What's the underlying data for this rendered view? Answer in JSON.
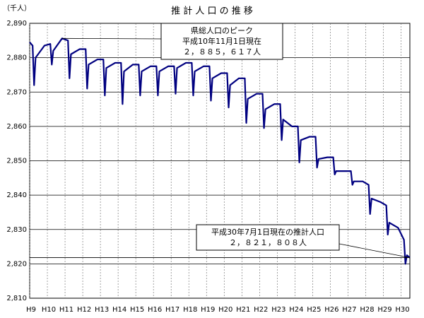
{
  "chart_data": {
    "type": "line",
    "title": "推 計 人 口 の 推 移",
    "y_label": "（千人）",
    "x": [
      0,
      2,
      3,
      4,
      10,
      14,
      15,
      16,
      22,
      26,
      27,
      28,
      34,
      38,
      39,
      40,
      46,
      50,
      51,
      52,
      58,
      62,
      63,
      64,
      70,
      74,
      75,
      76,
      82,
      86,
      87,
      88,
      94,
      98,
      99,
      100,
      106,
      110,
      111,
      112,
      118,
      122,
      123,
      124,
      130,
      134,
      135,
      136,
      142,
      146,
      147,
      148,
      154,
      158,
      159,
      160,
      166,
      170,
      171,
      172,
      178,
      182,
      183,
      184,
      190,
      194,
      195,
      196,
      202,
      206,
      207,
      208,
      214,
      218,
      219,
      220,
      226,
      230,
      231,
      232,
      238,
      242,
      243,
      244,
      250,
      254,
      255,
      256,
      258
    ],
    "series": [
      {
        "name": "推計人口",
        "color": "#000080",
        "values": [
          2884.5,
          2883.5,
          2872,
          2880,
          2883.5,
          2884,
          2878,
          2882,
          2885.617,
          2885,
          2874,
          2881,
          2882.5,
          2882.5,
          2871,
          2878,
          2879.5,
          2879.5,
          2869,
          2877,
          2878.5,
          2878.5,
          2866.5,
          2876,
          2878,
          2878,
          2869,
          2876,
          2877.5,
          2877.5,
          2869,
          2876,
          2877.5,
          2877.5,
          2869.5,
          2877,
          2878.5,
          2878.5,
          2869,
          2876,
          2877.5,
          2877.5,
          2867.5,
          2874,
          2875.5,
          2875.5,
          2865.5,
          2872,
          2874,
          2874,
          2861,
          2868,
          2869.5,
          2869.5,
          2859.5,
          2865,
          2866.5,
          2866.5,
          2856,
          2862,
          2860,
          2860,
          2849.5,
          2856,
          2857,
          2857,
          2848,
          2850.5,
          2851,
          2851,
          2846,
          2847,
          2847,
          2847,
          2843,
          2844,
          2844,
          2843,
          2834.5,
          2839,
          2838,
          2837,
          2828.5,
          2832,
          2830.5,
          2827,
          2820,
          2822.5,
          2821.808
        ]
      }
    ],
    "xlim": [
      0,
      258
    ],
    "xticks": [
      {
        "value": 0,
        "label": "H9"
      },
      {
        "value": 12,
        "label": "H10"
      },
      {
        "value": 24,
        "label": "H11"
      },
      {
        "value": 36,
        "label": "H12"
      },
      {
        "value": 48,
        "label": "H13"
      },
      {
        "value": 60,
        "label": "H14"
      },
      {
        "value": 72,
        "label": "H15"
      },
      {
        "value": 84,
        "label": "H16"
      },
      {
        "value": 96,
        "label": "H17"
      },
      {
        "value": 108,
        "label": "H18"
      },
      {
        "value": 120,
        "label": "H19"
      },
      {
        "value": 132,
        "label": "H20"
      },
      {
        "value": 144,
        "label": "H21"
      },
      {
        "value": 156,
        "label": "H22"
      },
      {
        "value": 168,
        "label": "H23"
      },
      {
        "value": 180,
        "label": "H24"
      },
      {
        "value": 192,
        "label": "H25"
      },
      {
        "value": 204,
        "label": "H26"
      },
      {
        "value": 216,
        "label": "H27"
      },
      {
        "value": 228,
        "label": "H28"
      },
      {
        "value": 240,
        "label": "H29"
      },
      {
        "value": 252,
        "label": "H30"
      }
    ],
    "ylim": [
      2810,
      2890
    ],
    "yticks": [
      {
        "value": 2810,
        "label": "2,810"
      },
      {
        "value": 2820,
        "label": "2,820"
      },
      {
        "value": 2830,
        "label": "2,830"
      },
      {
        "value": 2840,
        "label": "2,840"
      },
      {
        "value": 2850,
        "label": "2,850"
      },
      {
        "value": 2860,
        "label": "2,860"
      },
      {
        "value": 2870,
        "label": "2,870"
      },
      {
        "value": 2880,
        "label": "2,880"
      },
      {
        "value": 2890,
        "label": "2,890"
      }
    ],
    "grid": true,
    "annotations": [
      {
        "lines": [
          "県総人口のピーク",
          "平成10年11月1日現在",
          "２，８８５，６１７人"
        ]
      },
      {
        "lines": [
          "平成30年7月1日現在の推計人口",
          "２，８２１，８０８人"
        ]
      }
    ]
  }
}
